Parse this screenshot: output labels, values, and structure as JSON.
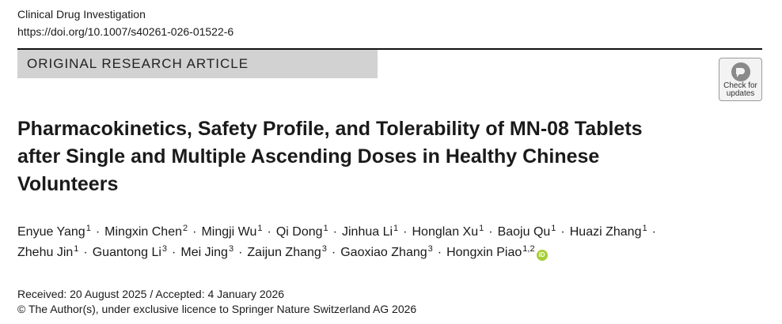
{
  "header": {
    "journal": "Clinical Drug Investigation",
    "doi": "https://doi.org/10.1007/s40261-026-01522-6"
  },
  "article_type": "ORIGINAL RESEARCH ARTICLE",
  "check_updates": {
    "line1": "Check for",
    "line2": "updates",
    "icon": "check-for-updates-icon"
  },
  "title": {
    "line1": "Pharmacokinetics, Safety Profile, and Tolerability of MN-08 Tablets",
    "line2": "after Single and Multiple Ascending Doses in Healthy Chinese",
    "line3": "Volunteers"
  },
  "authors": {
    "line1": [
      {
        "name": "Enyue Yang",
        "aff": "1"
      },
      {
        "name": "Mingxin Chen",
        "aff": "2"
      },
      {
        "name": "Mingji Wu",
        "aff": "1"
      },
      {
        "name": "Qi Dong",
        "aff": "1"
      },
      {
        "name": "Jinhua Li",
        "aff": "1"
      },
      {
        "name": "Honglan Xu",
        "aff": "1"
      },
      {
        "name": "Baoju Qu",
        "aff": "1"
      },
      {
        "name": "Huazi Zhang",
        "aff": "1"
      }
    ],
    "line2": [
      {
        "name": "Zhehu Jin",
        "aff": "1"
      },
      {
        "name": "Guantong Li",
        "aff": "3"
      },
      {
        "name": "Mei Jing",
        "aff": "3"
      },
      {
        "name": "Zaijun Zhang",
        "aff": "3"
      },
      {
        "name": "Gaoxiao Zhang",
        "aff": "3"
      },
      {
        "name": "Hongxin Piao",
        "aff": "1,2"
      }
    ],
    "separator": "·",
    "orcid_icon": "orcid-icon"
  },
  "dates": "Received: 20 August 2025 / Accepted: 4 January 2026",
  "copyright": "© The Author(s), under exclusive licence to Springer Nature Switzerland AG 2026"
}
